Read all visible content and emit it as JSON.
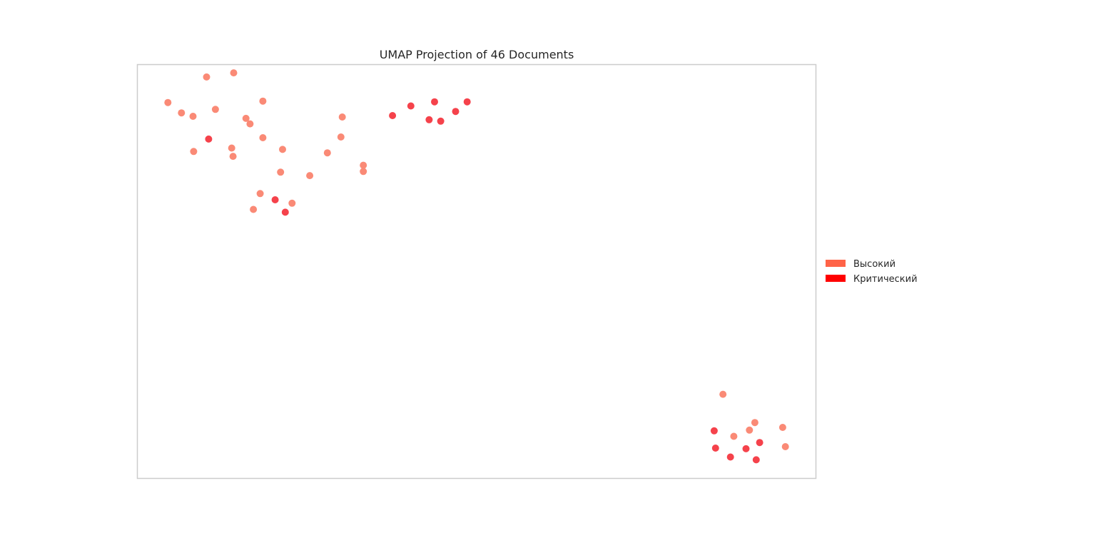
{
  "chart_data": {
    "type": "scatter",
    "title": "UMAP Projection of 46 Documents",
    "xlabel": "",
    "ylabel": "",
    "axes_visible": false,
    "grid": false,
    "xlim": [
      0,
      10
    ],
    "ylim": [
      0,
      6
    ],
    "legend_placement": "center-right outside plot",
    "legend": [
      {
        "name": "Высокий",
        "color": "#ff6347"
      },
      {
        "name": "Критический",
        "color": "#ff0000"
      }
    ],
    "series": [
      {
        "name": "Высокий",
        "color": "#ff6347",
        "point_color": "#fa8a76",
        "points": [
          {
            "x": 0.45,
            "y": 5.45
          },
          {
            "x": 1.02,
            "y": 5.82
          },
          {
            "x": 1.42,
            "y": 5.88
          },
          {
            "x": 0.65,
            "y": 5.3
          },
          {
            "x": 0.82,
            "y": 5.25
          },
          {
            "x": 1.15,
            "y": 5.35
          },
          {
            "x": 1.6,
            "y": 5.22
          },
          {
            "x": 1.66,
            "y": 5.14
          },
          {
            "x": 1.85,
            "y": 5.47
          },
          {
            "x": 0.83,
            "y": 4.74
          },
          {
            "x": 1.39,
            "y": 4.79
          },
          {
            "x": 1.41,
            "y": 4.67
          },
          {
            "x": 1.85,
            "y": 4.94
          },
          {
            "x": 2.14,
            "y": 4.77
          },
          {
            "x": 3.02,
            "y": 5.24
          },
          {
            "x": 3.0,
            "y": 4.95
          },
          {
            "x": 2.8,
            "y": 4.72
          },
          {
            "x": 3.33,
            "y": 4.54
          },
          {
            "x": 3.33,
            "y": 4.45
          },
          {
            "x": 2.11,
            "y": 4.44
          },
          {
            "x": 2.54,
            "y": 4.39
          },
          {
            "x": 1.81,
            "y": 4.13
          },
          {
            "x": 2.28,
            "y": 3.99
          },
          {
            "x": 1.71,
            "y": 3.9
          },
          {
            "x": 8.63,
            "y": 1.22
          },
          {
            "x": 9.1,
            "y": 0.81
          },
          {
            "x": 9.02,
            "y": 0.7
          },
          {
            "x": 8.79,
            "y": 0.61
          },
          {
            "x": 9.51,
            "y": 0.74
          },
          {
            "x": 9.55,
            "y": 0.46
          }
        ]
      },
      {
        "name": "Критический",
        "color": "#ff0000",
        "point_color": "#f5424b",
        "points": [
          {
            "x": 1.05,
            "y": 4.92
          },
          {
            "x": 2.03,
            "y": 4.04
          },
          {
            "x": 2.18,
            "y": 3.86
          },
          {
            "x": 3.76,
            "y": 5.26
          },
          {
            "x": 4.03,
            "y": 5.4
          },
          {
            "x": 4.3,
            "y": 5.2
          },
          {
            "x": 4.38,
            "y": 5.46
          },
          {
            "x": 4.47,
            "y": 5.18
          },
          {
            "x": 4.69,
            "y": 5.32
          },
          {
            "x": 4.86,
            "y": 5.46
          },
          {
            "x": 8.5,
            "y": 0.69
          },
          {
            "x": 8.52,
            "y": 0.44
          },
          {
            "x": 8.74,
            "y": 0.31
          },
          {
            "x": 8.97,
            "y": 0.43
          },
          {
            "x": 9.17,
            "y": 0.52
          },
          {
            "x": 9.12,
            "y": 0.27
          }
        ]
      }
    ]
  }
}
